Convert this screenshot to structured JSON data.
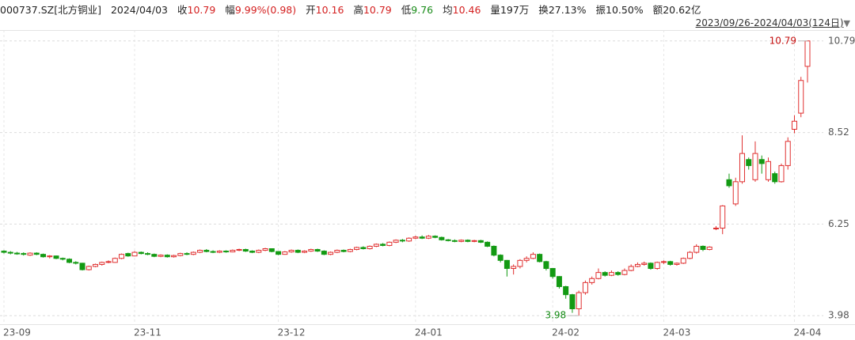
{
  "chart_data": {
    "type": "candlestick",
    "title": "000737.SZ[北方铜业]",
    "date": "2024/04/03",
    "stats": [
      {
        "label": "收",
        "value": "10.79",
        "color": "#d42020"
      },
      {
        "label": "幅",
        "value": "9.99%(0.98)",
        "color": "#d42020"
      },
      {
        "label": "开",
        "value": "10.16",
        "color": "#d42020"
      },
      {
        "label": "高",
        "value": "10.79",
        "color": "#d42020"
      },
      {
        "label": "低",
        "value": "9.76",
        "color": "#1a8c1a"
      },
      {
        "label": "均",
        "value": "10.46",
        "color": "#d42020"
      },
      {
        "label": "量",
        "value": "197万",
        "color": "#222222"
      },
      {
        "label": "换",
        "value": "27.13%",
        "color": "#222222"
      },
      {
        "label": "振",
        "value": "10.50%",
        "color": "#222222"
      },
      {
        "label": "额",
        "value": "20.62亿",
        "color": "#222222"
      }
    ],
    "range_label": "2023/09/26-2024/04/03(124日)",
    "categories": [
      "23-09",
      null,
      null,
      null,
      null,
      null,
      null,
      null,
      null,
      null,
      null,
      null,
      null,
      null,
      null,
      null,
      null,
      null,
      null,
      null,
      "23-11",
      null,
      null,
      null,
      null,
      null,
      null,
      null,
      null,
      null,
      null,
      null,
      null,
      null,
      null,
      null,
      null,
      null,
      null,
      null,
      null,
      null,
      "23-12",
      null,
      null,
      null,
      null,
      null,
      null,
      null,
      null,
      null,
      null,
      null,
      null,
      null,
      null,
      null,
      null,
      null,
      null,
      null,
      null,
      "24-01",
      null,
      null,
      null,
      null,
      null,
      null,
      null,
      null,
      null,
      null,
      null,
      null,
      null,
      null,
      null,
      null,
      null,
      null,
      null,
      null,
      "24-02",
      null,
      null,
      null,
      null,
      null,
      null,
      null,
      null,
      null,
      null,
      null,
      null,
      null,
      null,
      null,
      null,
      "24-03",
      null,
      null,
      null,
      null,
      null,
      null,
      null,
      null,
      null,
      null,
      null,
      null,
      null,
      null,
      null,
      null,
      null,
      null,
      null,
      "24-04",
      null,
      null
    ],
    "open": [
      5.58,
      5.55,
      5.53,
      5.52,
      5.48,
      5.53,
      5.5,
      5.44,
      5.46,
      5.4,
      5.38,
      5.3,
      5.28,
      5.12,
      5.2,
      5.25,
      5.3,
      5.3,
      5.4,
      5.52,
      5.46,
      5.55,
      5.52,
      5.5,
      5.45,
      5.48,
      5.44,
      5.47,
      5.52,
      5.5,
      5.55,
      5.6,
      5.57,
      5.55,
      5.58,
      5.56,
      5.6,
      5.62,
      5.58,
      5.55,
      5.6,
      5.64,
      5.57,
      5.5,
      5.56,
      5.6,
      5.55,
      5.58,
      5.62,
      5.58,
      5.5,
      5.55,
      5.6,
      5.57,
      5.62,
      5.67,
      5.64,
      5.7,
      5.75,
      5.72,
      5.8,
      5.85,
      5.83,
      5.9,
      5.93,
      5.9,
      5.95,
      5.92,
      5.86,
      5.84,
      5.82,
      5.85,
      5.82,
      5.84,
      5.8,
      5.7,
      5.48,
      5.35,
      5.15,
      5.2,
      5.35,
      5.4,
      5.5,
      5.32,
      5.15,
      4.95,
      4.7,
      4.5,
      4.15,
      4.55,
      4.8,
      4.9,
      5.05,
      4.98,
      5.05,
      5.0,
      5.1,
      5.2,
      5.25,
      5.28,
      5.15,
      5.3,
      5.32,
      5.25,
      5.28,
      5.4,
      5.55,
      5.7,
      5.62,
      6.15,
      6.15,
      7.35,
      6.75,
      7.3,
      7.85,
      7.35,
      7.85,
      7.35,
      7.5,
      7.3,
      7.7,
      8.6,
      9.0,
      10.16
    ],
    "high": [
      5.6,
      5.58,
      5.56,
      5.55,
      5.55,
      5.55,
      5.52,
      5.48,
      5.47,
      5.42,
      5.4,
      5.33,
      5.29,
      5.22,
      5.27,
      5.32,
      5.35,
      5.42,
      5.52,
      5.54,
      5.58,
      5.57,
      5.55,
      5.52,
      5.5,
      5.5,
      5.49,
      5.54,
      5.55,
      5.57,
      5.62,
      5.63,
      5.6,
      5.6,
      5.6,
      5.62,
      5.64,
      5.64,
      5.6,
      5.62,
      5.66,
      5.65,
      5.58,
      5.58,
      5.62,
      5.62,
      5.6,
      5.64,
      5.64,
      5.6,
      5.57,
      5.62,
      5.62,
      5.64,
      5.69,
      5.7,
      5.72,
      5.77,
      5.78,
      5.82,
      5.87,
      5.88,
      5.92,
      5.96,
      5.97,
      5.98,
      5.97,
      5.94,
      5.88,
      5.87,
      5.87,
      5.87,
      5.86,
      5.86,
      5.82,
      5.72,
      5.5,
      5.36,
      5.25,
      5.38,
      5.45,
      5.55,
      5.52,
      5.34,
      5.16,
      4.96,
      4.72,
      4.52,
      4.6,
      4.85,
      4.95,
      5.15,
      5.08,
      5.1,
      5.08,
      5.15,
      5.25,
      5.3,
      5.32,
      5.3,
      5.32,
      5.35,
      5.34,
      5.3,
      5.42,
      5.58,
      5.75,
      5.72,
      5.7,
      6.2,
      6.72,
      7.5,
      7.4,
      8.45,
      7.9,
      8.3,
      7.95,
      7.9,
      7.55,
      7.75,
      8.4,
      8.95,
      9.9,
      10.79
    ],
    "low": [
      5.52,
      5.5,
      5.49,
      5.47,
      5.46,
      5.48,
      5.42,
      5.4,
      5.38,
      5.35,
      5.28,
      5.25,
      5.1,
      5.1,
      5.18,
      5.22,
      5.28,
      5.29,
      5.38,
      5.44,
      5.45,
      5.5,
      5.48,
      5.43,
      5.43,
      5.42,
      5.42,
      5.45,
      5.48,
      5.48,
      5.53,
      5.55,
      5.53,
      5.53,
      5.54,
      5.55,
      5.58,
      5.56,
      5.53,
      5.53,
      5.58,
      5.55,
      5.48,
      5.49,
      5.54,
      5.53,
      5.53,
      5.56,
      5.56,
      5.48,
      5.48,
      5.53,
      5.55,
      5.55,
      5.6,
      5.62,
      5.62,
      5.68,
      5.7,
      5.7,
      5.78,
      5.8,
      5.81,
      5.88,
      5.88,
      5.88,
      5.9,
      5.84,
      5.82,
      5.8,
      5.8,
      5.8,
      5.8,
      5.78,
      5.68,
      5.45,
      5.3,
      4.95,
      5.0,
      5.15,
      5.3,
      5.38,
      5.3,
      5.1,
      4.9,
      4.65,
      4.4,
      4.05,
      3.98,
      4.5,
      4.75,
      4.88,
      4.95,
      4.96,
      4.97,
      4.98,
      5.08,
      5.18,
      5.22,
      5.12,
      5.12,
      5.26,
      5.22,
      5.22,
      5.26,
      5.38,
      5.52,
      5.58,
      5.6,
      6.1,
      6.0,
      7.15,
      6.7,
      7.25,
      7.6,
      7.3,
      7.5,
      7.3,
      7.25,
      7.28,
      7.6,
      8.5,
      8.9,
      9.76
    ],
    "close": [
      5.55,
      5.53,
      5.52,
      5.5,
      5.53,
      5.5,
      5.44,
      5.46,
      5.4,
      5.38,
      5.3,
      5.28,
      5.12,
      5.2,
      5.25,
      5.3,
      5.32,
      5.4,
      5.5,
      5.46,
      5.55,
      5.52,
      5.5,
      5.45,
      5.48,
      5.44,
      5.47,
      5.52,
      5.5,
      5.55,
      5.6,
      5.57,
      5.55,
      5.58,
      5.56,
      5.6,
      5.62,
      5.58,
      5.55,
      5.6,
      5.64,
      5.57,
      5.5,
      5.56,
      5.6,
      5.55,
      5.58,
      5.62,
      5.58,
      5.5,
      5.55,
      5.6,
      5.57,
      5.62,
      5.67,
      5.64,
      5.7,
      5.75,
      5.72,
      5.8,
      5.85,
      5.83,
      5.9,
      5.93,
      5.9,
      5.95,
      5.92,
      5.86,
      5.84,
      5.82,
      5.85,
      5.82,
      5.84,
      5.8,
      5.7,
      5.48,
      5.35,
      5.15,
      5.2,
      5.35,
      5.4,
      5.5,
      5.32,
      5.15,
      4.95,
      4.7,
      4.5,
      4.15,
      4.55,
      4.8,
      4.9,
      5.05,
      4.98,
      5.05,
      5.0,
      5.1,
      5.2,
      5.25,
      5.28,
      5.15,
      5.3,
      5.32,
      5.25,
      5.28,
      5.4,
      5.55,
      5.7,
      5.62,
      5.68,
      6.15,
      6.7,
      7.2,
      7.3,
      8.0,
      7.7,
      8.0,
      7.75,
      7.8,
      7.3,
      7.7,
      8.3,
      8.8,
      9.81,
      10.79
    ],
    "up_color": "#e03030",
    "down_color": "#139a13",
    "high_label_color": "#c41010",
    "low_label_color": "#138a13",
    "ylim": [
      3.69,
      11.06
    ],
    "yticks": [
      10.79,
      8.52,
      6.25,
      3.98
    ],
    "grid": true
  }
}
